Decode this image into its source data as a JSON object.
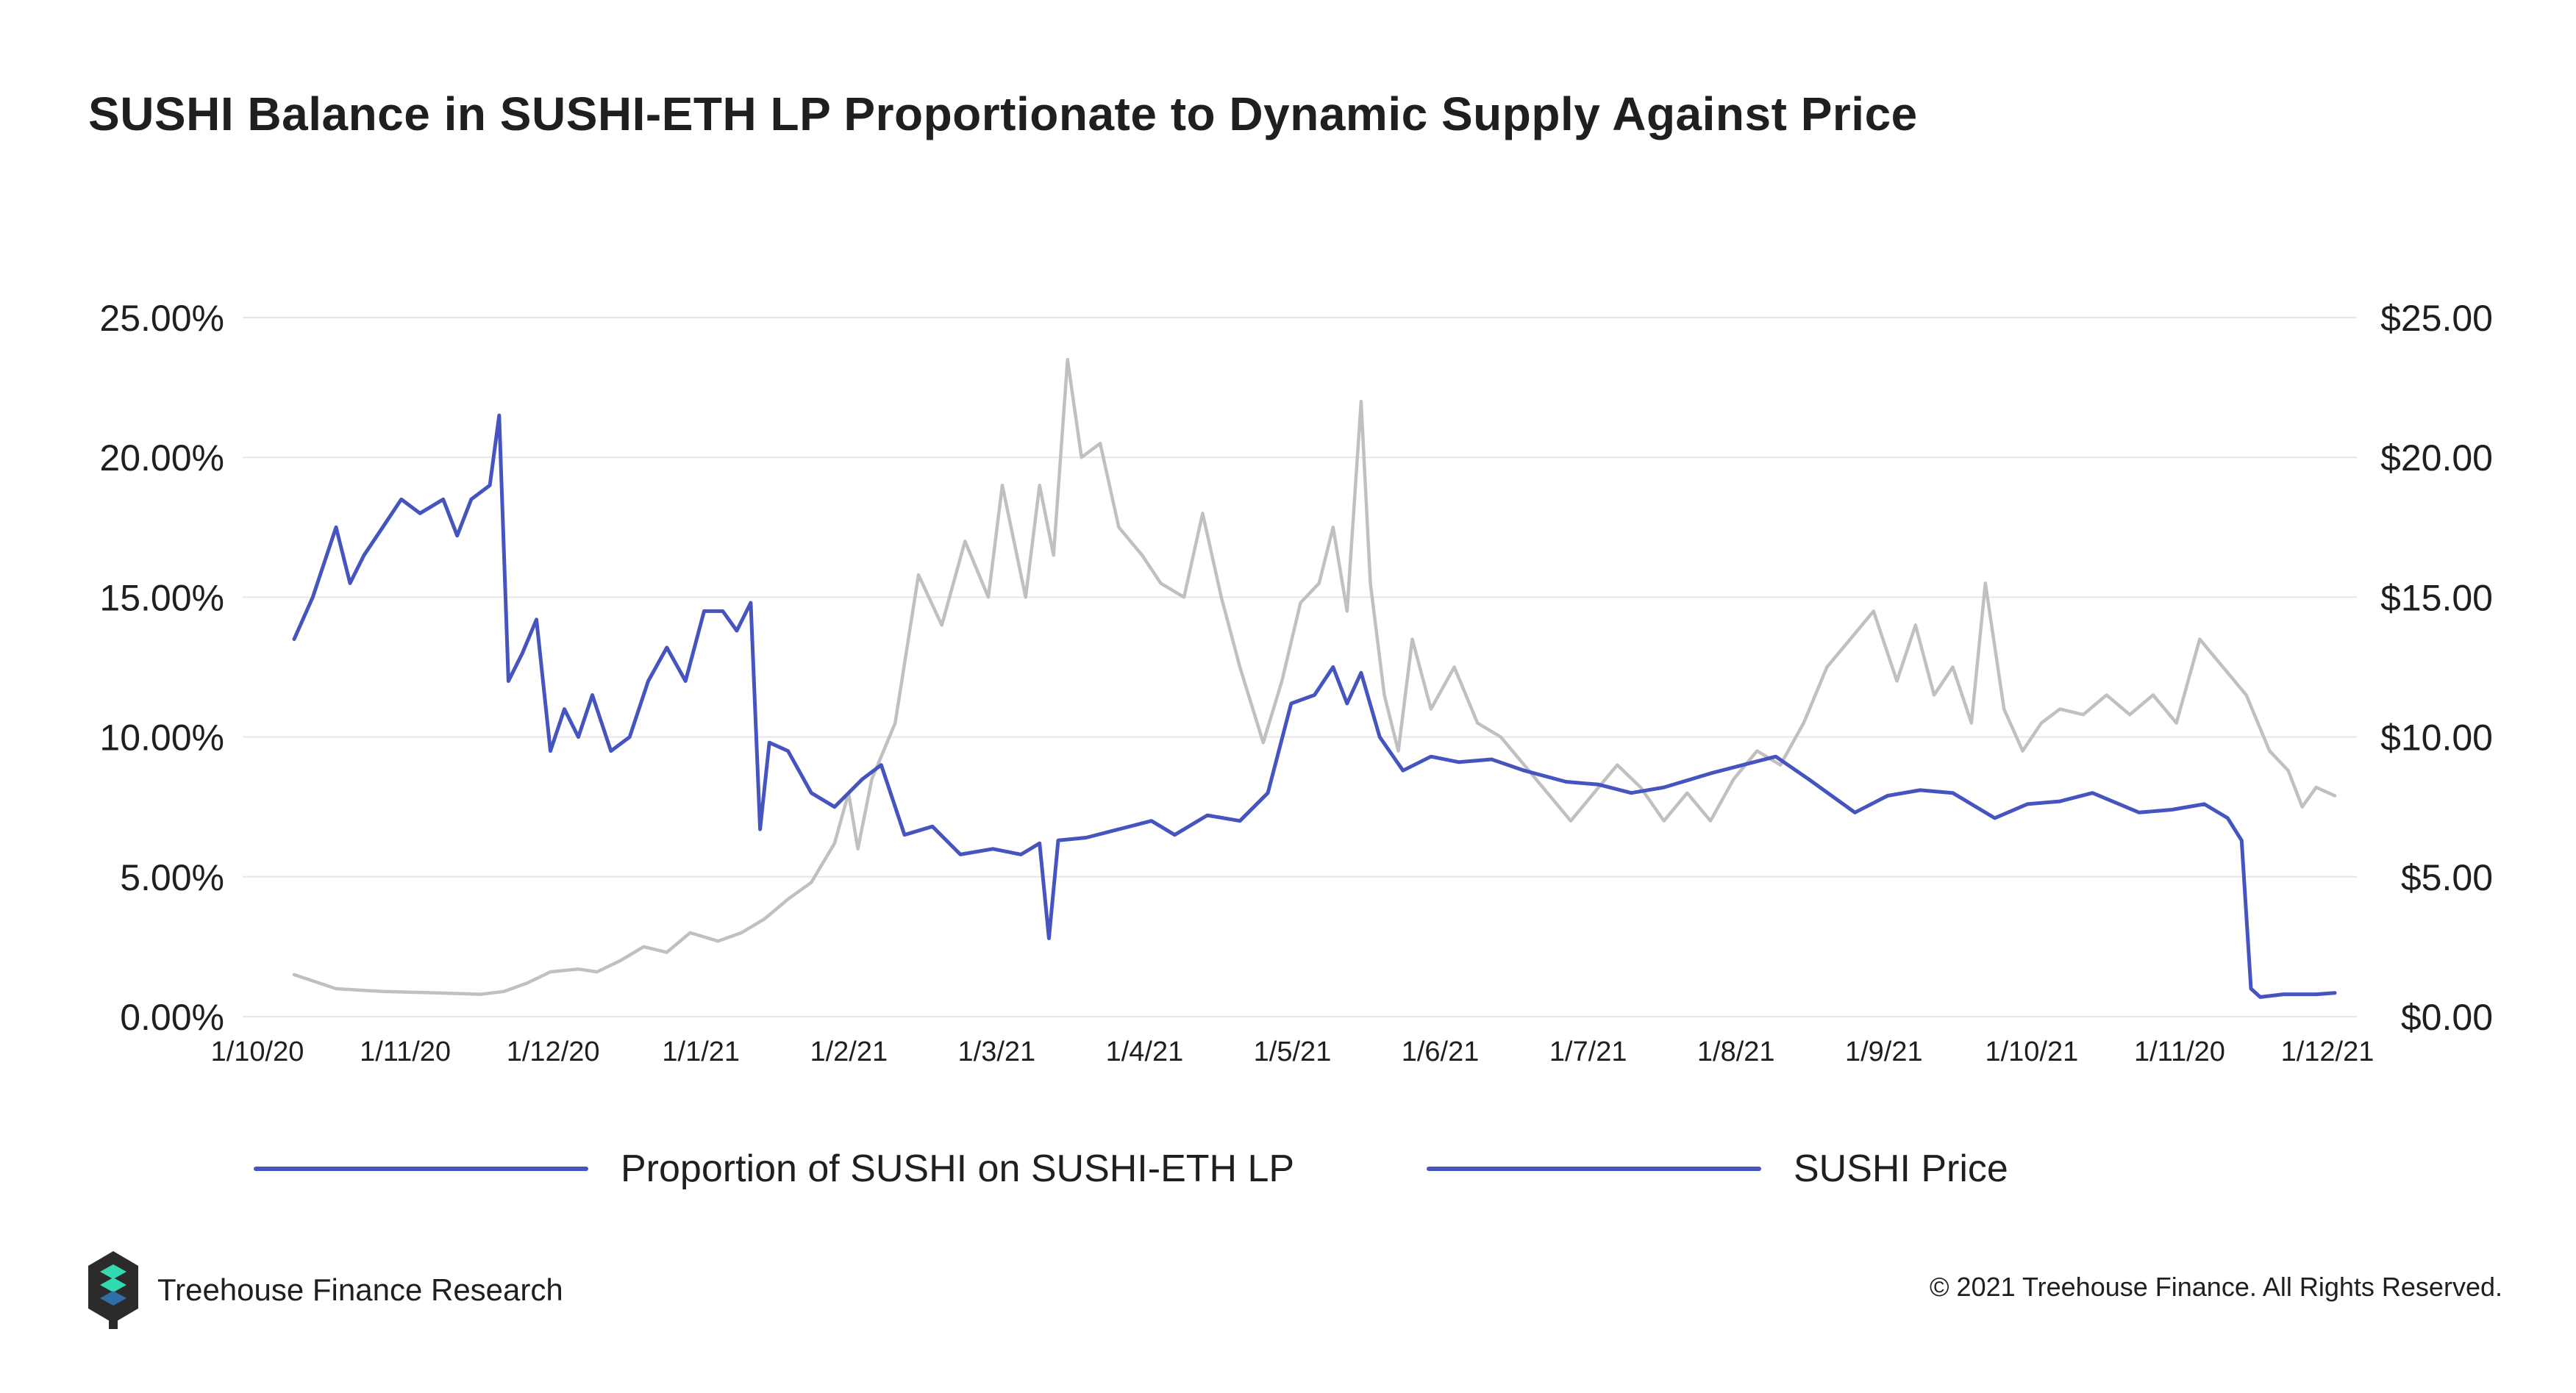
{
  "title": "SUSHI Balance in SUSHI-ETH LP Proportionate to Dynamic Supply Against Price",
  "legend": [
    {
      "label": "Proportion of SUSHI on SUSHI-ETH LP",
      "color": "#4654c0"
    },
    {
      "label": "SUSHI Price",
      "color": "#4654c0"
    }
  ],
  "brand": {
    "name": "Treehouse Finance Research",
    "icon": "treehouse-logo-icon"
  },
  "copyright": "© 2021 Treehouse Finance. All Rights Reserved.",
  "colors": {
    "proportion_line": "#4654c0",
    "price_line": "#c0c0c0",
    "grid": "#e6e6e6",
    "text": "#1f1f1f"
  },
  "chart_data": {
    "type": "line",
    "x_tick_labels": [
      "1/10/20",
      "1/11/20",
      "1/12/20",
      "1/1/21",
      "1/2/21",
      "1/3/21",
      "1/4/21",
      "1/5/21",
      "1/6/21",
      "1/7/21",
      "1/8/21",
      "1/9/21",
      "1/10/21",
      "1/11/20",
      "1/12/21"
    ],
    "y_left": {
      "ticks": [
        "0.00%",
        "5.00%",
        "10.00%",
        "15.00%",
        "20.00%",
        "25.00%"
      ],
      "ylim": [
        0,
        25
      ],
      "unit": "%"
    },
    "y_right": {
      "ticks": [
        "$0.00",
        "$5.00",
        "$10.00",
        "$15.00",
        "$20.00",
        "$25.00"
      ],
      "ylim": [
        0,
        25
      ],
      "unit": "USD"
    },
    "grid": true,
    "series": [
      {
        "name": "Proportion of SUSHI on SUSHI-ETH LP",
        "axis": "left",
        "points": [
          [
            "1/10/20",
            13.5
          ],
          [
            "5/10/20",
            15.0
          ],
          [
            "10/10/20",
            17.5
          ],
          [
            "13/10/20",
            15.5
          ],
          [
            "16/10/20",
            16.5
          ],
          [
            "20/10/20",
            17.5
          ],
          [
            "24/10/20",
            18.5
          ],
          [
            "28/10/20",
            18.0
          ],
          [
            "2/11/20",
            18.5
          ],
          [
            "5/11/20",
            17.2
          ],
          [
            "8/11/20",
            18.5
          ],
          [
            "12/11/20",
            19.0
          ],
          [
            "14/11/20",
            21.5
          ],
          [
            "16/11/20",
            12.0
          ],
          [
            "19/11/20",
            13.0
          ],
          [
            "22/11/20",
            14.2
          ],
          [
            "25/11/20",
            9.5
          ],
          [
            "28/11/20",
            11.0
          ],
          [
            "1/12/20",
            10.0
          ],
          [
            "4/12/20",
            11.5
          ],
          [
            "8/12/20",
            9.5
          ],
          [
            "12/12/20",
            10.0
          ],
          [
            "16/12/20",
            12.0
          ],
          [
            "20/12/20",
            13.2
          ],
          [
            "24/12/20",
            12.0
          ],
          [
            "28/12/20",
            14.5
          ],
          [
            "1/1/21",
            14.5
          ],
          [
            "4/1/21",
            13.8
          ],
          [
            "7/1/21",
            14.8
          ],
          [
            "9/1/21",
            6.7
          ],
          [
            "11/1/21",
            9.8
          ],
          [
            "15/1/21",
            9.5
          ],
          [
            "20/1/21",
            8.0
          ],
          [
            "25/1/21",
            7.5
          ],
          [
            "31/1/21",
            8.5
          ],
          [
            "4/2/21",
            9.0
          ],
          [
            "9/2/21",
            6.5
          ],
          [
            "15/2/21",
            6.8
          ],
          [
            "21/2/21",
            5.8
          ],
          [
            "28/2/21",
            6.0
          ],
          [
            "6/3/21",
            5.8
          ],
          [
            "10/3/21",
            6.2
          ],
          [
            "12/3/21",
            2.8
          ],
          [
            "14/3/21",
            6.3
          ],
          [
            "20/3/21",
            6.4
          ],
          [
            "27/3/21",
            6.7
          ],
          [
            "3/4/21",
            7.0
          ],
          [
            "8/4/21",
            6.5
          ],
          [
            "15/4/21",
            7.2
          ],
          [
            "22/4/21",
            7.0
          ],
          [
            "28/4/21",
            8.0
          ],
          [
            "3/5/21",
            11.2
          ],
          [
            "8/5/21",
            11.5
          ],
          [
            "12/5/21",
            12.5
          ],
          [
            "15/5/21",
            11.2
          ],
          [
            "18/5/21",
            12.3
          ],
          [
            "22/5/21",
            10.0
          ],
          [
            "27/5/21",
            8.8
          ],
          [
            "2/6/21",
            9.3
          ],
          [
            "8/6/21",
            9.1
          ],
          [
            "15/6/21",
            9.2
          ],
          [
            "22/6/21",
            8.8
          ],
          [
            "1/7/21",
            8.4
          ],
          [
            "8/7/21",
            8.3
          ],
          [
            "15/7/21",
            8.0
          ],
          [
            "22/7/21",
            8.2
          ],
          [
            "1/8/21",
            8.7
          ],
          [
            "8/8/21",
            9.0
          ],
          [
            "15/8/21",
            9.3
          ],
          [
            "22/8/21",
            8.5
          ],
          [
            "1/9/21",
            7.3
          ],
          [
            "8/9/21",
            7.9
          ],
          [
            "15/9/21",
            8.1
          ],
          [
            "22/9/21",
            8.0
          ],
          [
            "1/10/21",
            7.1
          ],
          [
            "8/10/21",
            7.6
          ],
          [
            "15/10/21",
            7.7
          ],
          [
            "22/10/21",
            8.0
          ],
          [
            "1/11/21",
            7.3
          ],
          [
            "8/11/21",
            7.4
          ],
          [
            "15/11/21",
            7.6
          ],
          [
            "20/11/21",
            7.1
          ],
          [
            "23/11/21",
            6.3
          ],
          [
            "25/11/21",
            1.0
          ],
          [
            "27/11/21",
            0.7
          ],
          [
            "2/12/21",
            0.8
          ],
          [
            "9/12/21",
            0.8
          ],
          [
            "13/12/21",
            0.85
          ]
        ]
      },
      {
        "name": "SUSHI Price",
        "axis": "right",
        "points": [
          [
            "1/10/20",
            1.5
          ],
          [
            "10/10/20",
            1.0
          ],
          [
            "20/10/20",
            0.9
          ],
          [
            "1/11/20",
            0.85
          ],
          [
            "10/11/20",
            0.8
          ],
          [
            "15/11/20",
            0.9
          ],
          [
            "20/11/20",
            1.2
          ],
          [
            "25/11/20",
            1.6
          ],
          [
            "1/12/20",
            1.7
          ],
          [
            "5/12/20",
            1.6
          ],
          [
            "10/12/20",
            2.0
          ],
          [
            "15/12/20",
            2.5
          ],
          [
            "20/12/20",
            2.3
          ],
          [
            "25/12/20",
            3.0
          ],
          [
            "31/12/20",
            2.7
          ],
          [
            "5/1/21",
            3.0
          ],
          [
            "10/1/21",
            3.5
          ],
          [
            "15/1/21",
            4.2
          ],
          [
            "20/1/21",
            4.8
          ],
          [
            "25/1/21",
            6.2
          ],
          [
            "28/1/21",
            8.0
          ],
          [
            "30/1/21",
            6.0
          ],
          [
            "2/2/21",
            8.5
          ],
          [
            "7/2/21",
            10.5
          ],
          [
            "12/2/21",
            15.8
          ],
          [
            "17/2/21",
            14.0
          ],
          [
            "22/2/21",
            17.0
          ],
          [
            "27/2/21",
            15.0
          ],
          [
            "2/3/21",
            19.0
          ],
          [
            "7/3/21",
            15.0
          ],
          [
            "10/3/21",
            19.0
          ],
          [
            "13/3/21",
            16.5
          ],
          [
            "16/3/21",
            23.5
          ],
          [
            "19/3/21",
            20.0
          ],
          [
            "23/3/21",
            20.5
          ],
          [
            "27/3/21",
            17.5
          ],
          [
            "1/4/21",
            16.5
          ],
          [
            "5/4/21",
            15.5
          ],
          [
            "10/4/21",
            15.0
          ],
          [
            "14/4/21",
            18.0
          ],
          [
            "18/4/21",
            15.0
          ],
          [
            "22/4/21",
            12.5
          ],
          [
            "27/4/21",
            9.8
          ],
          [
            "1/5/21",
            12.0
          ],
          [
            "5/5/21",
            14.8
          ],
          [
            "9/5/21",
            15.5
          ],
          [
            "12/5/21",
            17.5
          ],
          [
            "15/5/21",
            14.5
          ],
          [
            "18/5/21",
            22.0
          ],
          [
            "20/5/21",
            15.5
          ],
          [
            "23/5/21",
            11.5
          ],
          [
            "26/5/21",
            9.5
          ],
          [
            "29/5/21",
            13.5
          ],
          [
            "2/6/21",
            11.0
          ],
          [
            "7/6/21",
            12.5
          ],
          [
            "12/6/21",
            10.5
          ],
          [
            "17/6/21",
            10.0
          ],
          [
            "22/6/21",
            9.0
          ],
          [
            "27/6/21",
            8.0
          ],
          [
            "2/7/21",
            7.0
          ],
          [
            "7/7/21",
            8.0
          ],
          [
            "12/7/21",
            9.0
          ],
          [
            "17/7/21",
            8.2
          ],
          [
            "22/7/21",
            7.0
          ],
          [
            "27/7/21",
            8.0
          ],
          [
            "1/8/21",
            7.0
          ],
          [
            "6/8/21",
            8.5
          ],
          [
            "11/8/21",
            9.5
          ],
          [
            "16/8/21",
            9.0
          ],
          [
            "21/8/21",
            10.5
          ],
          [
            "26/8/21",
            12.5
          ],
          [
            "31/8/21",
            13.5
          ],
          [
            "5/9/21",
            14.5
          ],
          [
            "10/9/21",
            12.0
          ],
          [
            "14/9/21",
            14.0
          ],
          [
            "18/9/21",
            11.5
          ],
          [
            "22/9/21",
            12.5
          ],
          [
            "26/9/21",
            10.5
          ],
          [
            "29/9/21",
            15.5
          ],
          [
            "3/10/21",
            11.0
          ],
          [
            "7/10/21",
            9.5
          ],
          [
            "11/10/21",
            10.5
          ],
          [
            "15/10/21",
            11.0
          ],
          [
            "20/10/21",
            10.8
          ],
          [
            "25/10/21",
            11.5
          ],
          [
            "30/10/21",
            10.8
          ],
          [
            "4/11/21",
            11.5
          ],
          [
            "9/11/21",
            10.5
          ],
          [
            "14/11/21",
            13.5
          ],
          [
            "19/11/21",
            12.5
          ],
          [
            "24/11/21",
            11.5
          ],
          [
            "29/11/21",
            9.5
          ],
          [
            "3/12/21",
            8.8
          ],
          [
            "6/12/21",
            7.5
          ],
          [
            "9/12/21",
            8.2
          ],
          [
            "13/12/21",
            7.9
          ]
        ]
      }
    ]
  }
}
